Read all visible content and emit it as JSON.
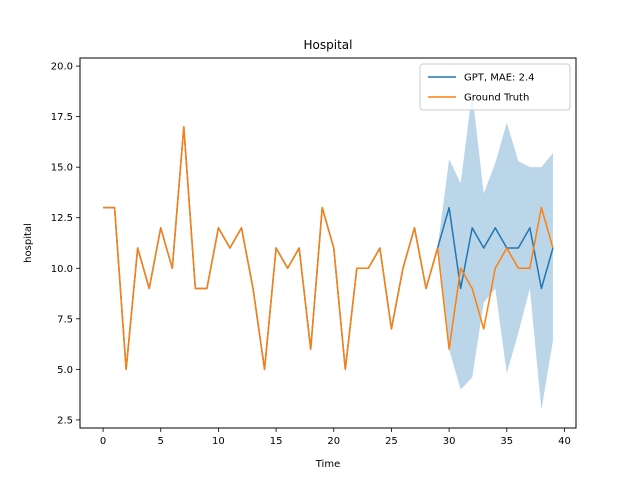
{
  "chart_data": {
    "type": "line",
    "title": "Hospital",
    "xlabel": "Time",
    "ylabel": "hospital",
    "xlim": [
      -2,
      41
    ],
    "ylim": [
      2.1,
      20.4
    ],
    "xticks": [
      0,
      5,
      10,
      15,
      20,
      25,
      30,
      35,
      40
    ],
    "xtick_labels": [
      "0",
      "5",
      "10",
      "15",
      "20",
      "25",
      "30",
      "35",
      "40"
    ],
    "yticks": [
      2.5,
      5.0,
      7.5,
      10.0,
      12.5,
      15.0,
      17.5,
      20.0
    ],
    "ytick_labels": [
      "2.5",
      "5.0",
      "7.5",
      "10.0",
      "12.5",
      "15.0",
      "17.5",
      "20.0"
    ],
    "grid": false,
    "legend_position": "top-right",
    "series": [
      {
        "name": "GPT, MAE: 2.4",
        "color": "#1f77b4",
        "x": [
          0,
          1,
          2,
          3,
          4,
          5,
          6,
          7,
          8,
          9,
          10,
          11,
          12,
          13,
          14,
          15,
          16,
          17,
          18,
          19,
          20,
          21,
          22,
          23,
          24,
          25,
          26,
          27,
          28,
          29,
          30,
          31,
          32,
          33,
          34,
          35,
          36,
          37,
          38,
          39
        ],
        "values": [
          13,
          13,
          5,
          11,
          9,
          12,
          10,
          17,
          9,
          9,
          12,
          11,
          12,
          9,
          5,
          11,
          10,
          11,
          6,
          13,
          11,
          5,
          10,
          10,
          11,
          7,
          10,
          12,
          9,
          11,
          13,
          9,
          12,
          11,
          12,
          11,
          11,
          12,
          9,
          11
        ]
      },
      {
        "name": "Ground Truth",
        "color": "#ff7f0e",
        "x": [
          0,
          1,
          2,
          3,
          4,
          5,
          6,
          7,
          8,
          9,
          10,
          11,
          12,
          13,
          14,
          15,
          16,
          17,
          18,
          19,
          20,
          21,
          22,
          23,
          24,
          25,
          26,
          27,
          28,
          29,
          30,
          31,
          32,
          33,
          34,
          35,
          36,
          37,
          38,
          39
        ],
        "values": [
          13,
          13,
          5,
          11,
          9,
          12,
          10,
          17,
          9,
          9,
          12,
          11,
          12,
          9,
          5,
          11,
          10,
          11,
          6,
          13,
          11,
          5,
          10,
          10,
          11,
          7,
          10,
          12,
          9,
          11,
          6,
          10,
          9,
          7,
          10,
          11,
          10,
          10,
          13,
          11
        ]
      }
    ],
    "confidence_band": {
      "color": "#1f77b4",
      "opacity": 0.3,
      "x": [
        29,
        30,
        31,
        32,
        33,
        34,
        35,
        36,
        37,
        38,
        39
      ],
      "lower": [
        11,
        6.0,
        4.0,
        4.6,
        8.3,
        9.0,
        4.8,
        6.8,
        9.0,
        3.0,
        6.4
      ],
      "upper": [
        11,
        15.4,
        14.2,
        18.7,
        13.7,
        15.2,
        17.2,
        15.3,
        15.0,
        15.0,
        15.7
      ]
    }
  }
}
